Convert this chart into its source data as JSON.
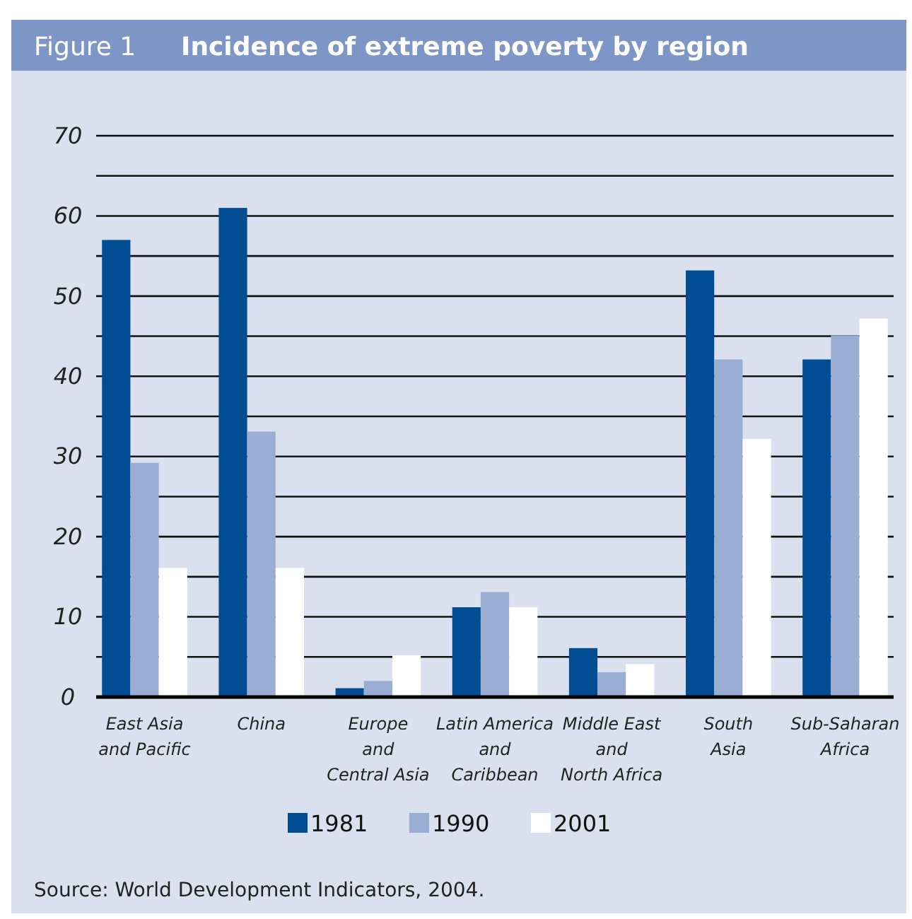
{
  "chart_data": {
    "type": "bar",
    "title": "Incidence of extreme poverty by region",
    "subtitle": "Figure 1",
    "categories": [
      "East Asia\nand Pacific",
      "China",
      "Europe\nand\nCentral Asia",
      "Latin America\nand\nCaribbean",
      "Middle East\nand\nNorth Africa",
      "South\nAsia",
      "Sub-Saharan\nAfrica"
    ],
    "series": [
      {
        "name": "1981",
        "color": "#004d93",
        "values": [
          57,
          61,
          1.1,
          11.2,
          6.1,
          53.2,
          42.1
        ]
      },
      {
        "name": "1990",
        "color": "#9aadd3",
        "values": [
          29.2,
          33.1,
          2,
          13.1,
          3.1,
          42.1,
          45.1
        ]
      },
      {
        "name": "2001",
        "color": "#ffffff",
        "values": [
          16.1,
          16.1,
          5.2,
          11.2,
          4.1,
          32.2,
          47.2
        ]
      }
    ],
    "ylim": [
      0,
      70
    ],
    "yticks": [
      0,
      {
        "value": 5,
        "label": null
      },
      10,
      {
        "value": 15,
        "label": null
      },
      20,
      {
        "value": 25,
        "label": null
      },
      30,
      {
        "value": 35,
        "label": null
      },
      40,
      {
        "value": 45,
        "label": null
      },
      50,
      {
        "value": 55,
        "label": null
      },
      60,
      {
        "value": 65,
        "label": null
      },
      70
    ],
    "grid": "y",
    "legend": "bottom",
    "annotations": [
      "Source: World Development Indicators, 2004."
    ]
  }
}
